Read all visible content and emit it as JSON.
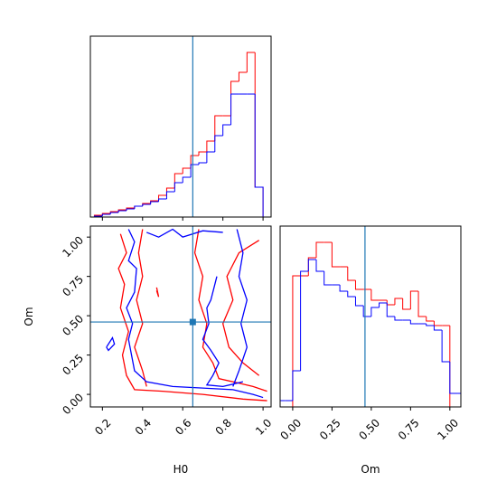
{
  "chart_data": [
    {
      "type": "histogram",
      "xlim": [
        0.14,
        1.04
      ],
      "ylim": [
        0,
        200
      ],
      "xticks": [
        0.2,
        0.4,
        0.6,
        0.8,
        1
      ],
      "bins": [
        0.16,
        0.2,
        0.24,
        0.28,
        0.32,
        0.36,
        0.4,
        0.44,
        0.48,
        0.52,
        0.56,
        0.6,
        0.64,
        0.68,
        0.72,
        0.76,
        0.8,
        0.84,
        0.88,
        0.92,
        0.96,
        1.0
      ],
      "series": [
        {
          "color": "red",
          "values": [
            2,
            4,
            6,
            8,
            10,
            12,
            15,
            18,
            24,
            32,
            48,
            54,
            68,
            72,
            84,
            112,
            112,
            150,
            160,
            182,
            33
          ]
        },
        {
          "color": "blue",
          "values": [
            1,
            3,
            5,
            7,
            9,
            12,
            14,
            17,
            20,
            28,
            38,
            44,
            58,
            60,
            72,
            90,
            102,
            136,
            136,
            136,
            33
          ]
        }
      ],
      "truth_x": 0.65,
      "truth_color": "#1f77b4"
    },
    {
      "type": "contour",
      "xlim": [
        0.14,
        1.04
      ],
      "ylim": [
        -0.08,
        1.07
      ],
      "xticks": [
        0.2,
        0.4,
        0.6,
        0.8,
        {
          "value": 1,
          "label": "1.0"
        }
      ],
      "yticks": [
        {
          "value": 0,
          "label": "0.00"
        },
        {
          "value": 0.25,
          "label": "0.25"
        },
        {
          "value": 0.5,
          "label": "0.50"
        },
        {
          "value": 0.75,
          "label": "0.75"
        },
        {
          "value": 1,
          "label": "1.00"
        }
      ],
      "x_label": "H0",
      "y_label": "Om",
      "series": [
        {
          "color": "red",
          "lines": [
            {
              "x": [
                0.29,
                0.32,
                0.28,
                0.31,
                0.29,
                0.33,
                0.3,
                0.32,
                0.36,
                0.5,
                0.7,
                0.9,
                1.02
              ],
              "y": [
                1.02,
                0.9,
                0.8,
                0.7,
                0.55,
                0.4,
                0.25,
                0.12,
                0.03,
                0.02,
                0.0,
                -0.03,
                -0.04
              ]
            },
            {
              "x": [
                0.4,
                0.38,
                0.4,
                0.37,
                0.4,
                0.36,
                0.4,
                0.42
              ],
              "y": [
                1.05,
                0.9,
                0.75,
                0.6,
                0.45,
                0.3,
                0.15,
                0.05
              ]
            },
            {
              "x": [
                0.68,
                0.66,
                0.7,
                0.68,
                0.72,
                0.7,
                0.75,
                0.78,
                0.85,
                0.95,
                1.02
              ],
              "y": [
                1.05,
                0.9,
                0.75,
                0.6,
                0.45,
                0.3,
                0.2,
                0.1,
                0.08,
                0.05,
                0.02
              ]
            },
            {
              "x": [
                0.98,
                0.88,
                0.82,
                0.85,
                0.8,
                0.83,
                0.9,
                0.98
              ],
              "y": [
                0.98,
                0.9,
                0.75,
                0.6,
                0.45,
                0.3,
                0.2,
                0.12
              ]
            },
            {
              "x": [
                0.47,
                0.48,
                0.47
              ],
              "y": [
                0.68,
                0.62,
                0.66
              ]
            }
          ]
        },
        {
          "color": "blue",
          "lines": [
            {
              "x": [
                0.33,
                0.36,
                0.33,
                0.37,
                0.36,
                0.32,
                0.35,
                0.33,
                0.36,
                0.42,
                0.55,
                0.7,
                0.85,
                0.95,
                1.0
              ],
              "y": [
                1.05,
                0.97,
                0.85,
                0.8,
                0.65,
                0.55,
                0.45,
                0.35,
                0.15,
                0.08,
                0.05,
                0.04,
                0.03,
                0.0,
                -0.02
              ]
            },
            {
              "x": [
                0.87,
                0.9,
                0.88,
                0.92,
                0.89,
                0.92,
                0.88,
                0.85
              ],
              "y": [
                1.05,
                0.9,
                0.75,
                0.6,
                0.45,
                0.3,
                0.15,
                0.05
              ]
            },
            {
              "x": [
                0.77,
                0.74,
                0.72,
                0.73,
                0.7,
                0.74,
                0.78,
                0.75,
                0.72,
                0.8,
                0.9
              ],
              "y": [
                0.75,
                0.6,
                0.55,
                0.45,
                0.35,
                0.28,
                0.2,
                0.12,
                0.06,
                0.05,
                0.08
              ]
            },
            {
              "x": [
                0.42,
                0.48,
                0.55,
                0.6,
                0.7,
                0.8
              ],
              "y": [
                1.03,
                1.0,
                1.05,
                1.0,
                1.04,
                1.03
              ]
            },
            {
              "x": [
                0.22,
                0.25,
                0.26,
                0.23,
                0.22
              ],
              "y": [
                0.3,
                0.36,
                0.32,
                0.28,
                0.3
              ]
            }
          ]
        }
      ],
      "truth": [
        0.65,
        0.46
      ],
      "truth_color": "#1f77b4"
    },
    {
      "type": "histogram",
      "xlim": [
        -0.08,
        1.07
      ],
      "ylim": [
        0,
        200
      ],
      "xticks": [
        {
          "value": 0,
          "label": "0.00"
        },
        {
          "value": 0.25,
          "label": "0.25"
        },
        {
          "value": 0.5,
          "label": "0.50"
        },
        {
          "value": 0.75,
          "label": "0.75"
        },
        {
          "value": 1,
          "label": "1.00"
        }
      ],
      "x_label": "Om",
      "bins": [
        -0.1,
        -0.05,
        0,
        0.05,
        0.1,
        0.15,
        0.2,
        0.25,
        0.3,
        0.35,
        0.4,
        0.45,
        0.5,
        0.55,
        0.6,
        0.65,
        0.7,
        0.75,
        0.8,
        0.85,
        0.9,
        0.95,
        1.0,
        1.05,
        1.1
      ],
      "series": [
        {
          "color": "red",
          "values": [
            0,
            0,
            145,
            145,
            165,
            182,
            182,
            155,
            155,
            140,
            130,
            130,
            118,
            118,
            113,
            120,
            108,
            128,
            100,
            95,
            90,
            90,
            0,
            0
          ]
        },
        {
          "color": "blue",
          "values": [
            7,
            7,
            40,
            150,
            163,
            150,
            135,
            135,
            128,
            122,
            112,
            100,
            110,
            115,
            100,
            96,
            96,
            92,
            92,
            90,
            85,
            50,
            15,
            15
          ]
        }
      ],
      "truth_x": 0.46,
      "truth_color": "#1f77b4"
    }
  ]
}
